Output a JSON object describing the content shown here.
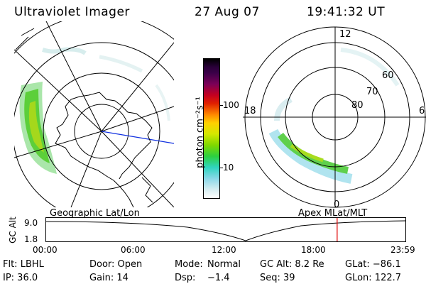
{
  "header": {
    "title": "Ultraviolet Imager",
    "date": "27 Aug 07",
    "time": "19:41:32 UT"
  },
  "colorbar": {
    "label": "photon cm⁻²s⁻¹",
    "ticks": [
      "100",
      "10"
    ]
  },
  "left_map": {
    "label": "Geographic Lat/Lon"
  },
  "right_map": {
    "label": "Apex MLat/MLT",
    "mlt_labels": [
      "12",
      "18",
      "6",
      "0"
    ],
    "lat_labels": [
      "60",
      "70",
      "80"
    ]
  },
  "altitude_plot": {
    "axis_label": "GC Alt",
    "y_ticks": [
      "9.0",
      "1.8"
    ],
    "x_ticks": [
      "00:00",
      "06:00",
      "12:00",
      "18:00",
      "23:59"
    ],
    "current_time_marker_fraction": 0.81,
    "marker_color": "#e00000"
  },
  "info": {
    "flt": "Flt: LBHL",
    "ip": "IP: 36.0",
    "door": "Door: Open",
    "gain": "Gain: 14",
    "mode_label": "Mode:",
    "mode_value": "Normal",
    "dsp_label": "Dsp:",
    "dsp_value": "−1.4",
    "gc_alt": "GC Alt: 8.2 Re",
    "seq": "Seq: 39",
    "glat": "GLat: −86.1",
    "glon": "GLon: 122.7"
  }
}
